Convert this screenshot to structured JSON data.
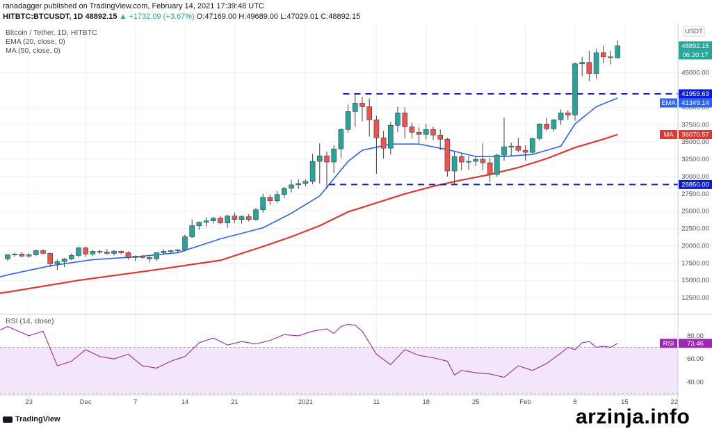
{
  "header": {
    "line1": "ranadagger published on TradingView.com, February 14, 2021 17:39:48 UTC",
    "symbol": "HITBTC:BTCUSDT, 1D 48892.15",
    "change": "▲ +1732.09 (+3.67%)",
    "ohlc": "O:47169.00 H:49689.00 L:47029.01 C:48892.15"
  },
  "legend": {
    "title": "Bitcoin / Tether, 1D, HITBTC",
    "ema": "EMA (20, close, 0)",
    "ma": "MA (50, close, 0)",
    "rsi": "RSI (14, close)"
  },
  "currency_button": "USDT",
  "branding": {
    "tradingview": "TradingView",
    "watermark": "arzinja.info"
  },
  "colors": {
    "up": "#26a69a",
    "down": "#ef5350",
    "ema": "#2962ff",
    "ma": "#e0382f",
    "rsi": "#9c27b0",
    "level": "#0d1bd8"
  },
  "chart_data": {
    "type": "candlestick",
    "title": "Bitcoin / Tether, 1D, HITBTC",
    "x_tick_labels": [
      "23",
      "Dec",
      "7",
      "14",
      "21",
      "2021",
      "11",
      "18",
      "25",
      "Feb",
      "8",
      "15",
      "22"
    ],
    "y_tick_labels": [
      "12500.00",
      "15000.00",
      "17500.00",
      "20000.00",
      "22500.00",
      "25000.00",
      "27500.00",
      "30000.00",
      "32500.00",
      "35000.00",
      "37500.00",
      "40000.00",
      "45000.00"
    ],
    "ylim": [
      10500,
      51500
    ],
    "candles": [
      {
        "o": 18100,
        "h": 18800,
        "l": 17800,
        "c": 18700
      },
      {
        "o": 18700,
        "h": 19000,
        "l": 18400,
        "c": 18800
      },
      {
        "o": 18800,
        "h": 19100,
        "l": 18300,
        "c": 18500
      },
      {
        "o": 18500,
        "h": 18900,
        "l": 18300,
        "c": 18700
      },
      {
        "o": 18700,
        "h": 19400,
        "l": 18500,
        "c": 19300
      },
      {
        "o": 19300,
        "h": 19500,
        "l": 18800,
        "c": 18900
      },
      {
        "o": 18900,
        "h": 19000,
        "l": 16900,
        "c": 17400
      },
      {
        "o": 17400,
        "h": 18000,
        "l": 16500,
        "c": 17700
      },
      {
        "o": 17700,
        "h": 18200,
        "l": 16900,
        "c": 18100
      },
      {
        "o": 18100,
        "h": 18900,
        "l": 17900,
        "c": 18600
      },
      {
        "o": 18600,
        "h": 19900,
        "l": 18300,
        "c": 19700
      },
      {
        "o": 19700,
        "h": 19900,
        "l": 18400,
        "c": 18800
      },
      {
        "o": 18800,
        "h": 19400,
        "l": 18500,
        "c": 19200
      },
      {
        "o": 19200,
        "h": 19400,
        "l": 18800,
        "c": 19100
      },
      {
        "o": 19100,
        "h": 19500,
        "l": 18700,
        "c": 18900
      },
      {
        "o": 18900,
        "h": 19400,
        "l": 18600,
        "c": 19200
      },
      {
        "o": 19200,
        "h": 19300,
        "l": 18800,
        "c": 19000
      },
      {
        "o": 19000,
        "h": 19200,
        "l": 18000,
        "c": 18300
      },
      {
        "o": 18300,
        "h": 18600,
        "l": 17800,
        "c": 18500
      },
      {
        "o": 18500,
        "h": 18700,
        "l": 18100,
        "c": 18300
      },
      {
        "o": 18300,
        "h": 18500,
        "l": 17600,
        "c": 18100
      },
      {
        "o": 18100,
        "h": 19100,
        "l": 17800,
        "c": 19000
      },
      {
        "o": 19000,
        "h": 19500,
        "l": 18700,
        "c": 19200
      },
      {
        "o": 19200,
        "h": 19400,
        "l": 18900,
        "c": 19300
      },
      {
        "o": 19300,
        "h": 19500,
        "l": 19000,
        "c": 19400
      },
      {
        "o": 19400,
        "h": 21600,
        "l": 19200,
        "c": 21300
      },
      {
        "o": 21300,
        "h": 23800,
        "l": 21100,
        "c": 22900
      },
      {
        "o": 22900,
        "h": 23500,
        "l": 22300,
        "c": 23400
      },
      {
        "o": 23400,
        "h": 24100,
        "l": 22800,
        "c": 23600
      },
      {
        "o": 23600,
        "h": 24200,
        "l": 23200,
        "c": 24000
      },
      {
        "o": 24000,
        "h": 24300,
        "l": 23100,
        "c": 23300
      },
      {
        "o": 23300,
        "h": 24500,
        "l": 22600,
        "c": 24300
      },
      {
        "o": 24300,
        "h": 24800,
        "l": 23300,
        "c": 23800
      },
      {
        "o": 23800,
        "h": 24400,
        "l": 23200,
        "c": 24200
      },
      {
        "o": 24200,
        "h": 24600,
        "l": 23500,
        "c": 23800
      },
      {
        "o": 23800,
        "h": 25500,
        "l": 23600,
        "c": 25200
      },
      {
        "o": 25200,
        "h": 27500,
        "l": 24800,
        "c": 27000
      },
      {
        "o": 27000,
        "h": 27400,
        "l": 25900,
        "c": 26500
      },
      {
        "o": 26500,
        "h": 27900,
        "l": 26200,
        "c": 27400
      },
      {
        "o": 27400,
        "h": 28500,
        "l": 26900,
        "c": 28300
      },
      {
        "o": 28300,
        "h": 29500,
        "l": 27700,
        "c": 28800
      },
      {
        "o": 28800,
        "h": 29600,
        "l": 28200,
        "c": 29000
      },
      {
        "o": 29000,
        "h": 29600,
        "l": 28600,
        "c": 29300
      },
      {
        "o": 29300,
        "h": 33300,
        "l": 28900,
        "c": 32200
      },
      {
        "o": 32200,
        "h": 34800,
        "l": 29000,
        "c": 33000
      },
      {
        "o": 33000,
        "h": 33600,
        "l": 28200,
        "c": 32100
      },
      {
        "o": 32100,
        "h": 34500,
        "l": 30500,
        "c": 34000
      },
      {
        "o": 34000,
        "h": 37000,
        "l": 32700,
        "c": 36800
      },
      {
        "o": 36800,
        "h": 40400,
        "l": 36300,
        "c": 39400
      },
      {
        "o": 39400,
        "h": 41950,
        "l": 37200,
        "c": 40600
      },
      {
        "o": 40600,
        "h": 41500,
        "l": 38000,
        "c": 40100
      },
      {
        "o": 40100,
        "h": 41300,
        "l": 35800,
        "c": 38200
      },
      {
        "o": 38200,
        "h": 38800,
        "l": 30400,
        "c": 35600
      },
      {
        "o": 35600,
        "h": 36600,
        "l": 32600,
        "c": 34100
      },
      {
        "o": 34100,
        "h": 37900,
        "l": 33200,
        "c": 37400
      },
      {
        "o": 37400,
        "h": 40100,
        "l": 36400,
        "c": 39200
      },
      {
        "o": 39200,
        "h": 40000,
        "l": 35500,
        "c": 37200
      },
      {
        "o": 37200,
        "h": 37800,
        "l": 35500,
        "c": 36400
      },
      {
        "o": 36400,
        "h": 37100,
        "l": 34800,
        "c": 36100
      },
      {
        "o": 36100,
        "h": 37600,
        "l": 35400,
        "c": 36800
      },
      {
        "o": 36800,
        "h": 37200,
        "l": 35300,
        "c": 36000
      },
      {
        "o": 36000,
        "h": 36800,
        "l": 33800,
        "c": 35400
      },
      {
        "o": 35400,
        "h": 35600,
        "l": 30000,
        "c": 30800
      },
      {
        "o": 30800,
        "h": 33700,
        "l": 28850,
        "c": 32900
      },
      {
        "o": 32900,
        "h": 33400,
        "l": 30900,
        "c": 32100
      },
      {
        "o": 32100,
        "h": 33000,
        "l": 31000,
        "c": 32200
      },
      {
        "o": 32200,
        "h": 33000,
        "l": 31500,
        "c": 32500
      },
      {
        "o": 32500,
        "h": 34800,
        "l": 30900,
        "c": 32000
      },
      {
        "o": 32000,
        "h": 32700,
        "l": 29200,
        "c": 30300
      },
      {
        "o": 30300,
        "h": 33300,
        "l": 30000,
        "c": 33100
      },
      {
        "o": 33100,
        "h": 38500,
        "l": 32300,
        "c": 34300
      },
      {
        "o": 34300,
        "h": 34900,
        "l": 33000,
        "c": 34400
      },
      {
        "o": 34400,
        "h": 35600,
        "l": 33500,
        "c": 33800
      },
      {
        "o": 33800,
        "h": 34500,
        "l": 32300,
        "c": 33500
      },
      {
        "o": 33500,
        "h": 35600,
        "l": 33300,
        "c": 35500
      },
      {
        "o": 35500,
        "h": 37700,
        "l": 35200,
        "c": 37600
      },
      {
        "o": 37600,
        "h": 38500,
        "l": 36600,
        "c": 36900
      },
      {
        "o": 36900,
        "h": 38300,
        "l": 36500,
        "c": 38200
      },
      {
        "o": 38200,
        "h": 39700,
        "l": 37500,
        "c": 39200
      },
      {
        "o": 39200,
        "h": 39600,
        "l": 38200,
        "c": 38900
      },
      {
        "o": 38900,
        "h": 46500,
        "l": 38100,
        "c": 46300
      },
      {
        "o": 46300,
        "h": 47300,
        "l": 44500,
        "c": 46500
      },
      {
        "o": 46500,
        "h": 48200,
        "l": 43800,
        "c": 44900
      },
      {
        "o": 44900,
        "h": 48500,
        "l": 44100,
        "c": 47900
      },
      {
        "o": 47900,
        "h": 48900,
        "l": 46400,
        "c": 47300
      },
      {
        "o": 47300,
        "h": 48200,
        "l": 46200,
        "c": 47200
      },
      {
        "o": 47169,
        "h": 49689,
        "l": 47029.01,
        "c": 48892.15
      }
    ],
    "series": [
      {
        "name": "EMA (20, close, 0)",
        "x": [
          0,
          6,
          12,
          18,
          24,
          30,
          36,
          40,
          44,
          48,
          50,
          54,
          58,
          62,
          66,
          70,
          74,
          78,
          80,
          83,
          86
        ],
        "values": [
          15800,
          17100,
          18000,
          18400,
          19000,
          21000,
          22600,
          24700,
          27200,
          32200,
          33800,
          34700,
          34700,
          33900,
          32900,
          32900,
          33200,
          34400,
          37600,
          40100,
          41349.14
        ]
      },
      {
        "name": "MA (50, close, 0)",
        "x": [
          0,
          10,
          20,
          30,
          36,
          40,
          44,
          48,
          52,
          56,
          60,
          64,
          68,
          72,
          76,
          80,
          84,
          86
        ],
        "values": [
          13300,
          15000,
          16400,
          17900,
          19900,
          21300,
          22900,
          24900,
          26200,
          27500,
          28600,
          29500,
          30300,
          31300,
          32600,
          34200,
          35400,
          36070.57
        ]
      },
      {
        "name": "RSI (14, close)",
        "x": [
          0,
          3,
          5,
          7,
          9,
          11,
          13,
          15,
          17,
          19,
          21,
          23,
          25,
          27,
          29,
          31,
          33,
          35,
          37,
          39,
          41,
          43,
          45,
          46,
          47,
          48,
          49,
          50,
          52,
          54,
          56,
          58,
          60,
          62,
          63,
          64,
          66,
          68,
          70,
          72,
          74,
          76,
          78,
          79,
          80,
          81,
          82,
          83,
          84,
          85,
          86
        ],
        "values": [
          88,
          80,
          84,
          54,
          58,
          68,
          62,
          60,
          64,
          54,
          52,
          58,
          62,
          74,
          78,
          72,
          75,
          73,
          76,
          81,
          80,
          84,
          86,
          82,
          88,
          90,
          89,
          84,
          64,
          55,
          68,
          63,
          61,
          58,
          46,
          50,
          48,
          47,
          44,
          54,
          50,
          56,
          65,
          70,
          68,
          74,
          75,
          70,
          71,
          70,
          73.46
        ]
      }
    ],
    "horizontal_levels": [
      41959.63,
      28850.0
    ],
    "last_values": {
      "close": "48892.15",
      "countdown": "06:20:17",
      "resistance": "41959.63",
      "ema": "41349.14",
      "ma": "36070.57",
      "support": "28850.00",
      "rsi": "73.46"
    },
    "rsi_y_tick_labels": [
      "80.00",
      "60.00",
      "40.00"
    ],
    "rsi_ylim": [
      30,
      95
    ],
    "rsi_bands": [
      70,
      30
    ]
  }
}
